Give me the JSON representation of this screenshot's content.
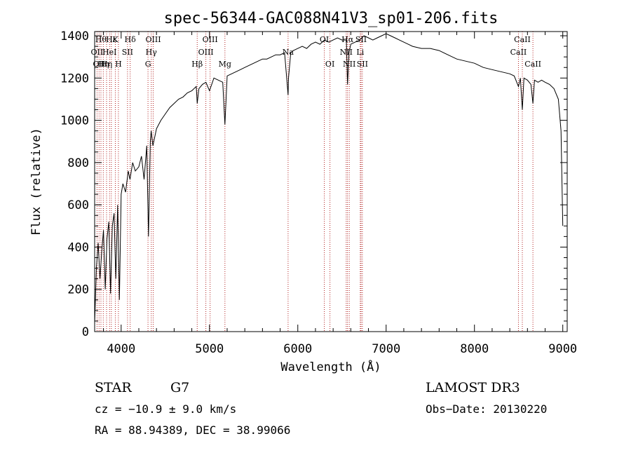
{
  "chart_data": {
    "type": "line",
    "title": "spec-56344-GAC088N41V3_sp01-206.fits",
    "xlabel": "Wavelength (Å)",
    "ylabel": "Flux (relative)",
    "xlim": [
      3700,
      9050
    ],
    "ylim": [
      0,
      1420
    ],
    "xticks": [
      4000,
      5000,
      6000,
      7000,
      8000,
      9000
    ],
    "xtick_labels": [
      "4000",
      "5000",
      "6000",
      "7000",
      "8000",
      "9000"
    ],
    "yticks": [
      0,
      200,
      400,
      600,
      800,
      1000,
      1200,
      1400
    ],
    "ytick_labels": [
      "0",
      "200",
      "400",
      "600",
      "800",
      "1000",
      "1200",
      "1400"
    ],
    "series": [
      {
        "name": "flux",
        "x": [
          3700,
          3720,
          3740,
          3760,
          3780,
          3800,
          3820,
          3840,
          3860,
          3880,
          3900,
          3920,
          3940,
          3960,
          3980,
          4000,
          4020,
          4050,
          4080,
          4100,
          4130,
          4160,
          4200,
          4230,
          4260,
          4290,
          4310,
          4330,
          4340,
          4360,
          4400,
          4450,
          4500,
          4550,
          4600,
          4650,
          4700,
          4750,
          4800,
          4850,
          4861,
          4880,
          4920,
          4960,
          5000,
          5050,
          5100,
          5150,
          5175,
          5200,
          5250,
          5300,
          5350,
          5400,
          5450,
          5500,
          5550,
          5600,
          5650,
          5700,
          5750,
          5800,
          5850,
          5890,
          5895,
          5920,
          5950,
          6000,
          6050,
          6100,
          6150,
          6200,
          6250,
          6300,
          6350,
          6400,
          6450,
          6500,
          6550,
          6563,
          6580,
          6600,
          6650,
          6700,
          6750,
          6800,
          6850,
          6900,
          6950,
          7000,
          7050,
          7100,
          7150,
          7200,
          7250,
          7300,
          7400,
          7500,
          7600,
          7700,
          7800,
          7900,
          8000,
          8100,
          8200,
          8300,
          8400,
          8450,
          8498,
          8520,
          8542,
          8560,
          8600,
          8640,
          8662,
          8680,
          8720,
          8760,
          8800,
          8850,
          8900,
          8950,
          8980,
          9000
        ],
        "y": [
          40,
          300,
          420,
          250,
          380,
          480,
          200,
          440,
          520,
          180,
          500,
          560,
          250,
          600,
          150,
          650,
          700,
          660,
          760,
          720,
          800,
          760,
          780,
          830,
          720,
          880,
          450,
          900,
          950,
          880,
          960,
          1000,
          1030,
          1060,
          1080,
          1100,
          1110,
          1130,
          1140,
          1160,
          1080,
          1150,
          1170,
          1180,
          1140,
          1200,
          1190,
          1180,
          980,
          1210,
          1220,
          1230,
          1240,
          1250,
          1260,
          1270,
          1280,
          1290,
          1290,
          1300,
          1310,
          1310,
          1320,
          1120,
          1200,
          1320,
          1330,
          1340,
          1350,
          1340,
          1360,
          1370,
          1360,
          1380,
          1370,
          1380,
          1390,
          1380,
          1380,
          1170,
          1320,
          1360,
          1370,
          1380,
          1400,
          1390,
          1380,
          1390,
          1400,
          1410,
          1400,
          1390,
          1380,
          1370,
          1360,
          1350,
          1340,
          1340,
          1330,
          1310,
          1290,
          1280,
          1270,
          1250,
          1240,
          1230,
          1220,
          1210,
          1160,
          1200,
          1050,
          1200,
          1190,
          1170,
          1080,
          1190,
          1180,
          1190,
          1180,
          1170,
          1150,
          1100,
          950,
          500
        ]
      }
    ],
    "line_markers": [
      {
        "wavelength": 3727,
        "label": "OII",
        "row": 2
      },
      {
        "wavelength": 3750,
        "label": "OII",
        "row": 3
      },
      {
        "wavelength": 3771,
        "label": "Hθ",
        "row": 1
      },
      {
        "wavelength": 3798,
        "label": "Hη",
        "row": 3
      },
      {
        "wavelength": 3835,
        "label": "Hη",
        "row": 3
      },
      {
        "wavelength": 3869,
        "label": "HeI",
        "row": 2
      },
      {
        "wavelength": 3889,
        "label": "Hε",
        "row": 1
      },
      {
        "wavelength": 3934,
        "label": "K",
        "row": 1
      },
      {
        "wavelength": 3969,
        "label": "H",
        "row": 3
      },
      {
        "wavelength": 4072,
        "label": "SII",
        "row": 2
      },
      {
        "wavelength": 4102,
        "label": "Hδ",
        "row": 1
      },
      {
        "wavelength": 4304,
        "label": "G",
        "row": 3
      },
      {
        "wavelength": 4341,
        "label": "Hγ",
        "row": 2
      },
      {
        "wavelength": 4363,
        "label": "OIII",
        "row": 1
      },
      {
        "wavelength": 4861,
        "label": "Hβ",
        "row": 3
      },
      {
        "wavelength": 4959,
        "label": "OIII",
        "row": 2
      },
      {
        "wavelength": 5007,
        "label": "OIII",
        "row": 1
      },
      {
        "wavelength": 5175,
        "label": "Mg",
        "row": 3
      },
      {
        "wavelength": 5890,
        "label": "Na",
        "row": 2
      },
      {
        "wavelength": 6300,
        "label": "OI",
        "row": 1
      },
      {
        "wavelength": 6364,
        "label": "OI",
        "row": 3
      },
      {
        "wavelength": 6548,
        "label": "NII",
        "row": 2
      },
      {
        "wavelength": 6563,
        "label": "Hα",
        "row": 1
      },
      {
        "wavelength": 6583,
        "label": "NII",
        "row": 3
      },
      {
        "wavelength": 6707,
        "label": "Li",
        "row": 2
      },
      {
        "wavelength": 6716,
        "label": "SII",
        "row": 1
      },
      {
        "wavelength": 6731,
        "label": "SII",
        "row": 3
      },
      {
        "wavelength": 8498,
        "label": "CaII",
        "row": 2
      },
      {
        "wavelength": 8542,
        "label": "CaII",
        "row": 1
      },
      {
        "wavelength": 8662,
        "label": "CaII",
        "row": 3
      }
    ],
    "marker_color": "#b22222"
  },
  "info": {
    "object_type": "STAR",
    "subclass": "G7",
    "redshift_line": "cz = −10.9 ± 9.0 km/s",
    "coords_line": "RA =  88.94389, DEC =  38.99066",
    "survey": "LAMOST DR3",
    "obs_date": "Obs−Date: 20130220"
  }
}
